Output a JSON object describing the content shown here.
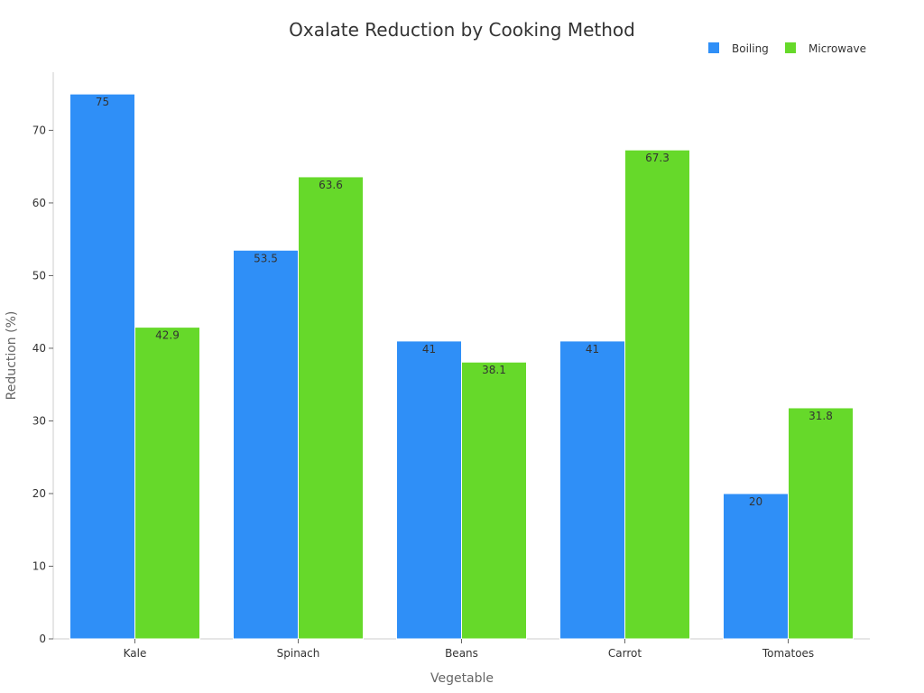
{
  "chart_data": {
    "type": "bar",
    "title": "Oxalate Reduction by Cooking Method",
    "xlabel": "Vegetable",
    "ylabel": "Reduction (%)",
    "categories": [
      "Kale",
      "Spinach",
      "Beans",
      "Carrot",
      "Tomatoes"
    ],
    "series": [
      {
        "name": "Boiling",
        "color": "#2f8ff7",
        "values": [
          75,
          53.5,
          41,
          41,
          20
        ]
      },
      {
        "name": "Microwave",
        "color": "#66d92a",
        "values": [
          42.9,
          63.6,
          38.1,
          67.3,
          31.8
        ]
      }
    ],
    "ylim": [
      0,
      78
    ],
    "yticks": [
      0,
      10,
      20,
      30,
      40,
      50,
      60,
      70
    ],
    "grid": false,
    "legend": "top-right"
  }
}
